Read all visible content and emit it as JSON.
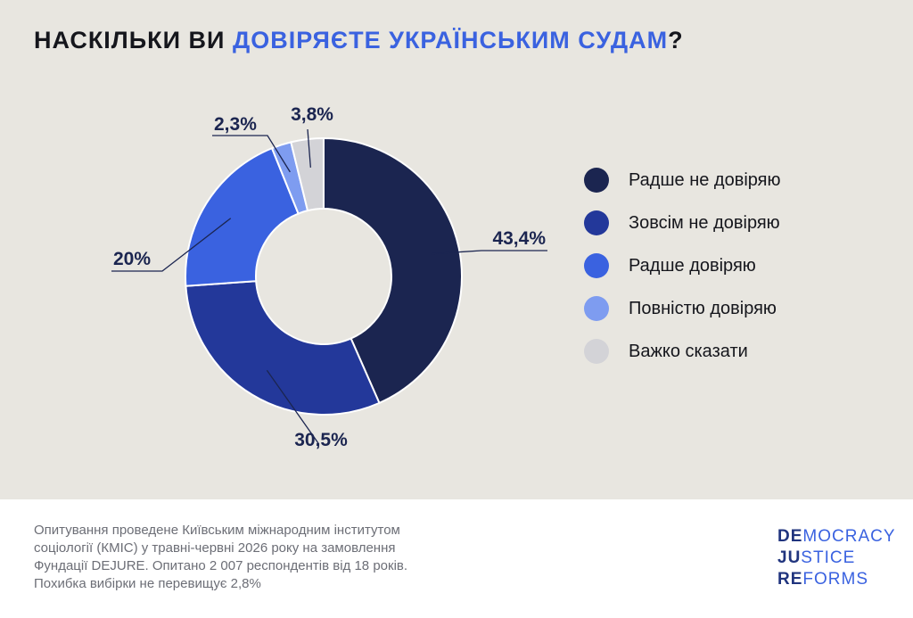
{
  "title": {
    "prefix": "НАСКІЛЬКИ ВИ ",
    "highlight": "ДОВІРЯЄТЕ УКРАЇНСЬКИМ СУДАМ",
    "suffix": "?"
  },
  "colors": {
    "accent": "#3a62e0",
    "background": "#e8e6e0",
    "footer_background": "#ffffff"
  },
  "chart_data": {
    "type": "pie",
    "style": "donut",
    "legend_position": "right",
    "series": [
      {
        "name": "Радше не довіряю",
        "value": 43.4,
        "label": "43,4%",
        "color": "#1b2550"
      },
      {
        "name": "Зовсім не довіряю",
        "value": 30.5,
        "label": "30,5%",
        "color": "#23389a"
      },
      {
        "name": "Радше довіряю",
        "value": 20,
        "label": "20%",
        "color": "#3a62e0"
      },
      {
        "name": "Повністю довіряю",
        "value": 2.3,
        "label": "2,3%",
        "color": "#7e9cf0"
      },
      {
        "name": "Важко сказати",
        "value": 3.8,
        "label": "3,8%",
        "color": "#d3d3d7"
      }
    ]
  },
  "footer": {
    "note_lines": [
      "Опитування проведене Київським міжнародним інститутом",
      "соціології (КМІС) у травні-червні 2026 року на замовлення",
      "Фундації DEJURE. Опитано 2 007 респондентів від 18 років.",
      "Похибка вибірки не перевищує 2,8%"
    ],
    "logo": [
      {
        "strong": "DE",
        "rest": "MOCRACY"
      },
      {
        "strong": "JU",
        "rest": "STICE"
      },
      {
        "strong": "RE",
        "rest": "FORMS"
      }
    ]
  }
}
